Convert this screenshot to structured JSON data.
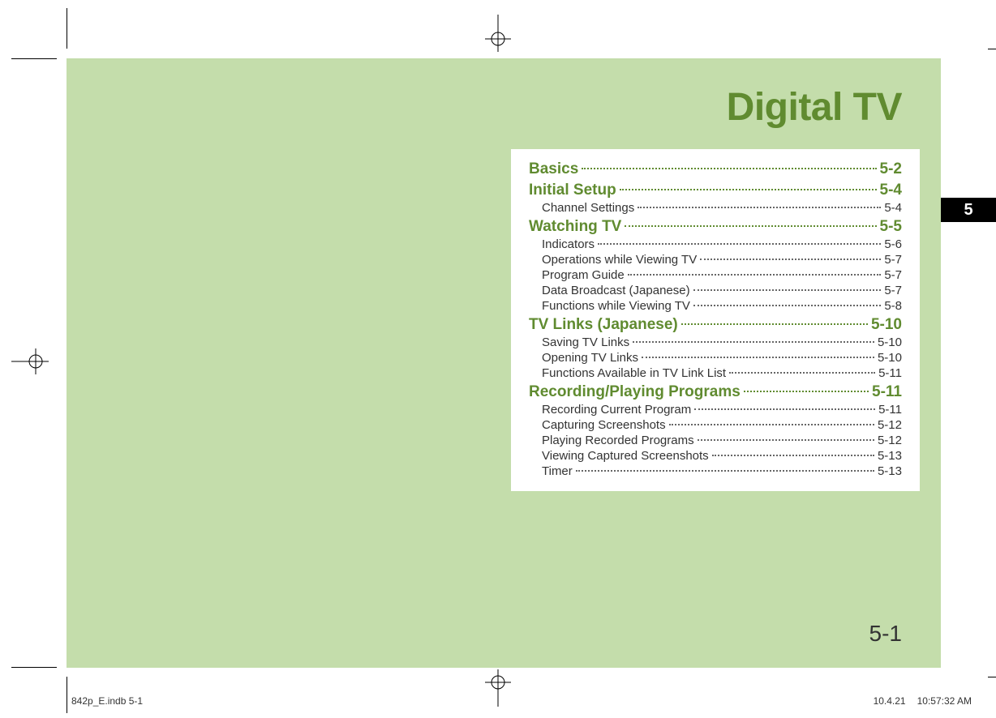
{
  "colors": {
    "page_bg": "#c4ddab",
    "accent": "#608b30",
    "tab_bg": "#000000",
    "tab_fg": "#ffffff",
    "body_text": "#333333",
    "leader_section": "#608b30",
    "leader_sub": "#666666",
    "toc_bg": "#ffffff"
  },
  "chapter": {
    "title": "Digital TV",
    "tab_number": "5",
    "page_number": "5-1"
  },
  "toc": [
    {
      "level": "section",
      "label": "Basics",
      "page": "5-2"
    },
    {
      "level": "section",
      "label": "Initial Setup",
      "page": "5-4"
    },
    {
      "level": "sub",
      "label": "Channel Settings",
      "page": "5-4"
    },
    {
      "level": "section",
      "label": "Watching TV",
      "page": "5-5"
    },
    {
      "level": "sub",
      "label": "Indicators",
      "page": "5-6"
    },
    {
      "level": "sub",
      "label": "Operations while Viewing TV",
      "page": "5-7"
    },
    {
      "level": "sub",
      "label": "Program Guide",
      "page": "5-7"
    },
    {
      "level": "sub",
      "label": "Data Broadcast (Japanese)",
      "page": "5-7"
    },
    {
      "level": "sub",
      "label": "Functions while Viewing TV",
      "page": "5-8"
    },
    {
      "level": "section",
      "label": "TV Links (Japanese)",
      "page": "5-10"
    },
    {
      "level": "sub",
      "label": "Saving TV Links",
      "page": "5-10"
    },
    {
      "level": "sub",
      "label": "Opening TV Links",
      "page": "5-10"
    },
    {
      "level": "sub",
      "label": "Functions Available in TV Link List",
      "page": "5-11"
    },
    {
      "level": "section",
      "label": "Recording/Playing Programs",
      "page": "5-11"
    },
    {
      "level": "sub",
      "label": "Recording Current Program",
      "page": "5-11"
    },
    {
      "level": "sub",
      "label": "Capturing Screenshots",
      "page": "5-12"
    },
    {
      "level": "sub",
      "label": "Playing Recorded Programs",
      "page": "5-12"
    },
    {
      "level": "sub",
      "label": "Viewing Captured Screenshots",
      "page": "5-13"
    },
    {
      "level": "sub",
      "label": "Timer",
      "page": "5-13"
    }
  ],
  "footer": {
    "file_ref": "842p_E.indb   5-1",
    "date": "10.4.21",
    "time": "10:57:32 AM"
  },
  "typography": {
    "title_fontsize": 48,
    "title_weight": 800,
    "section_fontsize": 19,
    "section_weight": 700,
    "sub_fontsize": 15,
    "page_number_fontsize": 28,
    "footer_fontsize": 12,
    "tab_fontsize": 20
  },
  "marks": {
    "crop_line_color": "#000000",
    "reg_mark_color": "#000000"
  }
}
